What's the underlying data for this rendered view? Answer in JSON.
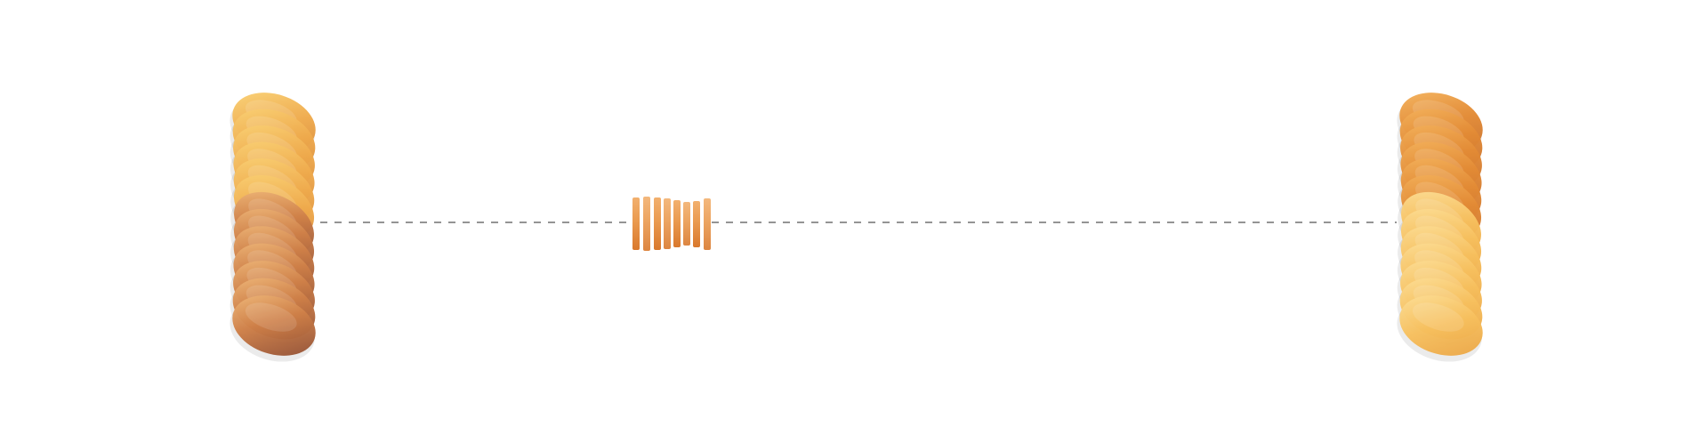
{
  "scene": {
    "background": "#ffffff",
    "connector_color": "#555555",
    "palette": {
      "light_amber": "#f6c463",
      "amber": "#f0a94a",
      "orange": "#e58c3a",
      "copper": "#c8743f",
      "brown": "#8f4f37",
      "pale": "#f4d9b4"
    },
    "objects": [
      {
        "name": "left-coil",
        "description_icon": "stacked-disc-coil"
      },
      {
        "name": "center-compressed-coil",
        "description_icon": "compressed-slat-stack"
      },
      {
        "name": "right-coil",
        "description_icon": "stacked-disc-coil"
      }
    ]
  }
}
